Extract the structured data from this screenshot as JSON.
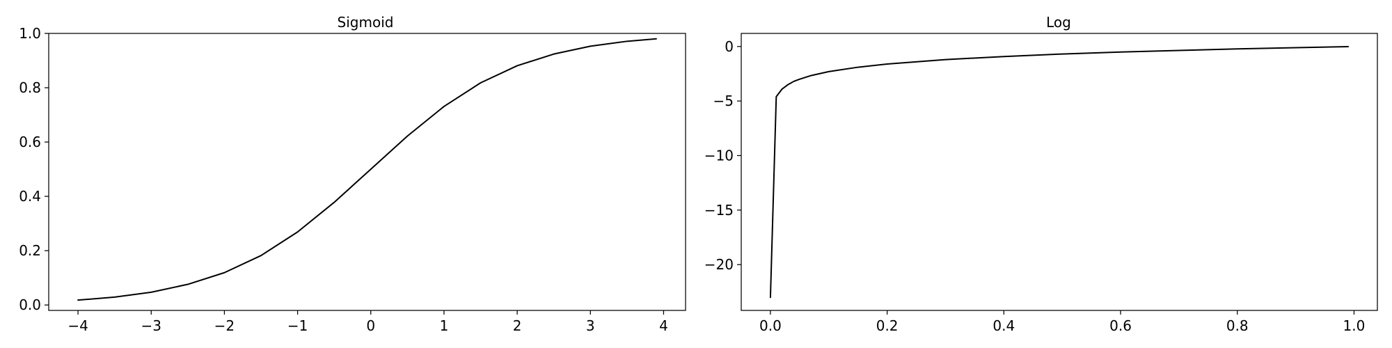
{
  "chart_data": [
    {
      "type": "line",
      "title": "Sigmoid",
      "xlabel": "",
      "ylabel": "",
      "xlim": [
        -4.4,
        4.3
      ],
      "ylim": [
        -0.02,
        1.0
      ],
      "xticks": [
        -4,
        -3,
        -2,
        -1,
        0,
        1,
        2,
        3,
        4
      ],
      "xtick_labels": [
        "−4",
        "−3",
        "−2",
        "−1",
        "0",
        "1",
        "2",
        "3",
        "4"
      ],
      "yticks": [
        0.0,
        0.2,
        0.4,
        0.6,
        0.8,
        1.0
      ],
      "ytick_labels": [
        "0.0",
        "0.2",
        "0.4",
        "0.6",
        "0.8",
        "1.0"
      ],
      "grid": false,
      "color": "#000000",
      "series": [
        {
          "x": [
            -4.0,
            -3.5,
            -3.0,
            -2.5,
            -2.0,
            -1.5,
            -1.0,
            -0.5,
            0.0,
            0.5,
            1.0,
            1.5,
            2.0,
            2.5,
            3.0,
            3.5,
            3.9
          ],
          "y": [
            0.018,
            0.029,
            0.047,
            0.076,
            0.119,
            0.182,
            0.269,
            0.378,
            0.5,
            0.622,
            0.731,
            0.818,
            0.881,
            0.924,
            0.953,
            0.971,
            0.98
          ]
        }
      ]
    },
    {
      "type": "line",
      "title": "Log",
      "xlabel": "",
      "ylabel": "",
      "xlim": [
        -0.05,
        1.04
      ],
      "ylim": [
        -24.2,
        1.2
      ],
      "xticks": [
        0.0,
        0.2,
        0.4,
        0.6,
        0.8,
        1.0
      ],
      "xtick_labels": [
        "0.0",
        "0.2",
        "0.4",
        "0.6",
        "0.8",
        "1.0"
      ],
      "yticks": [
        0,
        -5,
        -10,
        -15,
        -20
      ],
      "ytick_labels": [
        "0",
        "−5",
        "−10",
        "−15",
        "−20"
      ],
      "grid": false,
      "color": "#000000",
      "series": [
        {
          "x": [
            0.0,
            0.01,
            0.02,
            0.03,
            0.04,
            0.05,
            0.07,
            0.1,
            0.15,
            0.2,
            0.3,
            0.4,
            0.5,
            0.6,
            0.7,
            0.8,
            0.9,
            0.99
          ],
          "y": [
            -23.0,
            -4.6,
            -3.9,
            -3.5,
            -3.2,
            -3.0,
            -2.66,
            -2.3,
            -1.9,
            -1.61,
            -1.2,
            -0.92,
            -0.69,
            -0.51,
            -0.36,
            -0.22,
            -0.11,
            -0.01
          ]
        }
      ]
    }
  ]
}
